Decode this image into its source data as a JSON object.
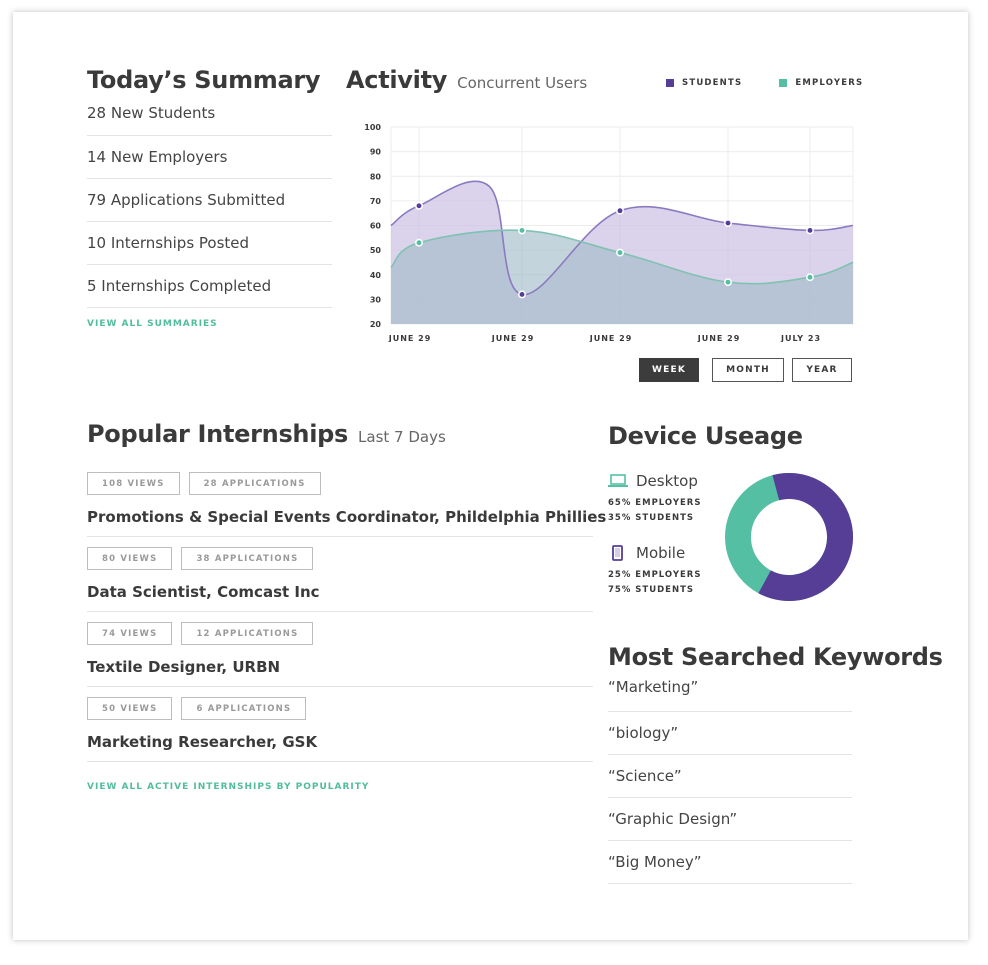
{
  "summary": {
    "title": "Today’s Summary",
    "items": [
      "28 New Students",
      "14 New Employers",
      "79 Applications Submitted",
      "10 Internships Posted",
      "5 Internships Completed"
    ],
    "view_all": "VIEW ALL SUMMARIES"
  },
  "activity": {
    "title": "Activity",
    "subtitle": "Concurrent Users",
    "legend": [
      {
        "label": "STUDENTS",
        "color": "#563d96"
      },
      {
        "label": "EMPLOYERS",
        "color": "#55bfa4"
      }
    ],
    "ranges": [
      "WEEK",
      "MONTH",
      "YEAR"
    ],
    "active_range": "WEEK"
  },
  "chart_data": {
    "type": "area",
    "x_labels": [
      "JUNE 29",
      "JUNE 29",
      "JUNE 29",
      "JUNE 29",
      "JULY 23"
    ],
    "ylim": [
      20,
      100
    ],
    "y_ticks": [
      20,
      30,
      40,
      50,
      60,
      70,
      80,
      90,
      100
    ],
    "grid": true,
    "series": [
      {
        "name": "STUDENTS",
        "color": "#563d96",
        "points": [
          68,
          32,
          66,
          61,
          58
        ]
      },
      {
        "name": "EMPLOYERS",
        "color": "#55bfa4",
        "points": [
          53,
          58,
          49,
          37,
          39
        ]
      }
    ]
  },
  "internships": {
    "title": "Popular Internships",
    "subtitle": "Last 7 Days",
    "items": [
      {
        "views": "108 VIEWS",
        "applications": "28 APPLICATIONS",
        "title": "Promotions & Special Events Coordinator, Phildelphia Phillies"
      },
      {
        "views": "80 VIEWS",
        "applications": "38 APPLICATIONS",
        "title": "Data Scientist, Comcast Inc"
      },
      {
        "views": "74 VIEWS",
        "applications": "12 APPLICATIONS",
        "title": "Textile Designer, URBN"
      },
      {
        "views": "50 VIEWS",
        "applications": "6 APPLICATIONS",
        "title": "Marketing Researcher, GSK"
      }
    ],
    "view_all": "VIEW ALL ACTIVE INTERNSHIPS BY POPULARITY"
  },
  "device": {
    "title": "Device Useage",
    "desktop": {
      "label": "Desktop",
      "employers": "65% EMPLOYERS",
      "students": "35% STUDENTS"
    },
    "mobile": {
      "label": "Mobile",
      "employers": "25% EMPLOYERS",
      "students": "75% STUDENTS"
    },
    "donut": {
      "students_pct": 62,
      "employers_pct": 38,
      "students_color": "#563d96",
      "employers_color": "#55bfa4"
    }
  },
  "keywords": {
    "title": "Most Searched Keywords",
    "items": [
      "“Marketing”",
      "“biology”",
      "“Science”",
      "“Graphic Design”",
      "“Big Money”"
    ]
  }
}
